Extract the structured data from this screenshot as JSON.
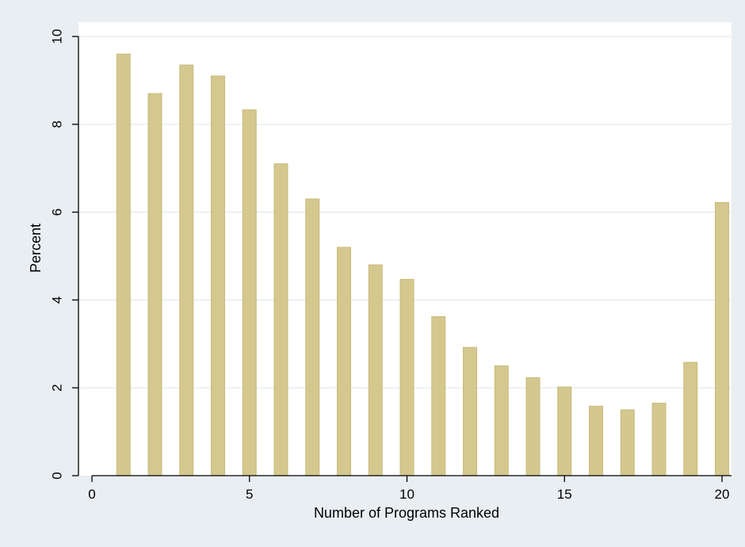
{
  "chart_data": {
    "type": "bar",
    "title": "",
    "xlabel": "Number of Programs Ranked",
    "ylabel": "Percent",
    "xlim": [
      0,
      20
    ],
    "ylim": [
      0,
      10
    ],
    "x_ticks": [
      "0",
      "5",
      "10",
      "15",
      "20"
    ],
    "y_ticks": [
      "0",
      "2",
      "4",
      "6",
      "8",
      "10"
    ],
    "grid": true,
    "x": [
      1,
      2,
      3,
      4,
      5,
      6,
      7,
      8,
      9,
      10,
      11,
      12,
      13,
      14,
      15,
      16,
      17,
      18,
      19,
      20
    ],
    "values": [
      9.6,
      8.7,
      9.35,
      9.1,
      8.33,
      7.1,
      6.3,
      5.2,
      4.8,
      4.47,
      3.62,
      2.92,
      2.5,
      2.23,
      2.02,
      1.58,
      1.5,
      1.65,
      2.58,
      6.22
    ],
    "colors": {
      "bar_fill": "#d4c88f",
      "bar_stroke": "#c8bb7c",
      "plot_bg": "#ffffff",
      "outer_bg": "#e9eef2",
      "grid": "#e3e9ee"
    }
  }
}
